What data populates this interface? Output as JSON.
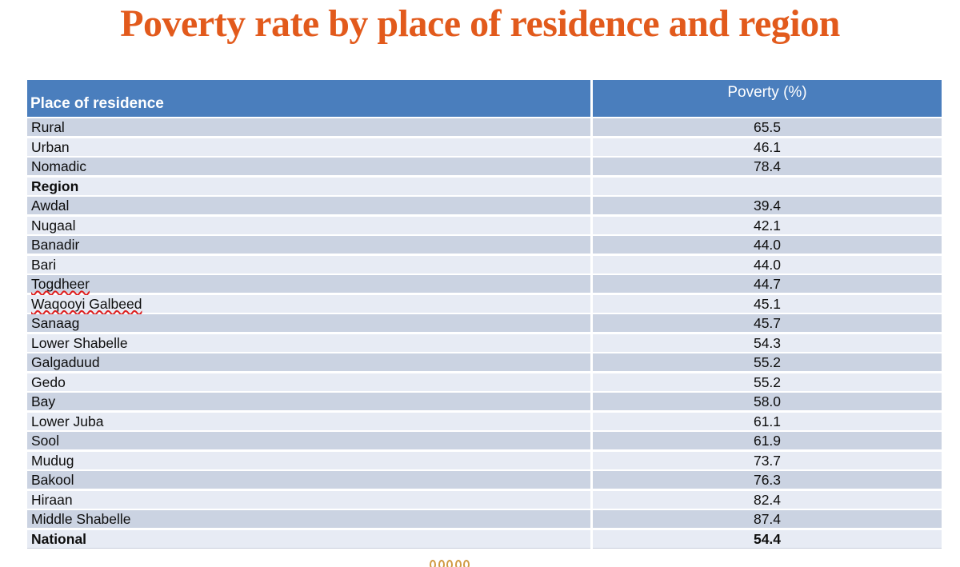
{
  "title": "Poverty rate by place of residence and region",
  "table": {
    "columns": [
      "Place of residence",
      "Poverty (%)"
    ],
    "rows": [
      {
        "label": "Rural",
        "value": "65.5",
        "bold": false,
        "misspelled": false
      },
      {
        "label": "Urban",
        "value": "46.1",
        "bold": false,
        "misspelled": false
      },
      {
        "label": "Nomadic",
        "value": "78.4",
        "bold": false,
        "misspelled": false
      },
      {
        "label": "Region",
        "value": "",
        "bold": true,
        "misspelled": false
      },
      {
        "label": "Awdal",
        "value": "39.4",
        "bold": false,
        "misspelled": false
      },
      {
        "label": "Nugaal",
        "value": "42.1",
        "bold": false,
        "misspelled": false
      },
      {
        "label": "Banadir",
        "value": "44.0",
        "bold": false,
        "misspelled": false
      },
      {
        "label": "Bari",
        "value": "44.0",
        "bold": false,
        "misspelled": false
      },
      {
        "label": "Togdheer",
        "value": "44.7",
        "bold": false,
        "misspelled": true
      },
      {
        "label": "Waqooyi Galbeed",
        "value": "45.1",
        "bold": false,
        "misspelled": true
      },
      {
        "label": "Sanaag",
        "value": "45.7",
        "bold": false,
        "misspelled": false
      },
      {
        "label": "Lower Shabelle",
        "value": "54.3",
        "bold": false,
        "misspelled": false
      },
      {
        "label": "Galgaduud",
        "value": "55.2",
        "bold": false,
        "misspelled": false
      },
      {
        "label": "Gedo",
        "value": "55.2",
        "bold": false,
        "misspelled": false
      },
      {
        "label": "Bay",
        "value": "58.0",
        "bold": false,
        "misspelled": false
      },
      {
        "label": "Lower Juba",
        "value": "61.1",
        "bold": false,
        "misspelled": false
      },
      {
        "label": "Sool",
        "value": "61.9",
        "bold": false,
        "misspelled": false
      },
      {
        "label": "Mudug",
        "value": "73.7",
        "bold": false,
        "misspelled": false
      },
      {
        "label": "Bakool",
        "value": "76.3",
        "bold": false,
        "misspelled": false
      },
      {
        "label": "Hiraan",
        "value": "82.4",
        "bold": false,
        "misspelled": false
      },
      {
        "label": "Middle Shabelle",
        "value": "87.4",
        "bold": false,
        "misspelled": false
      },
      {
        "label": "National",
        "value": "54.4",
        "bold": true,
        "misspelled": false
      }
    ]
  },
  "colors": {
    "title_orange": "#E25A1C",
    "header_blue": "#4A7EBD",
    "band_dark": "#CBD3E2",
    "band_light": "#E7EBF4",
    "spellcheck_red": "#DD1F1F",
    "bottom_marks_orange": "#D09A43",
    "bottom_border": "#C7CDDB"
  },
  "chart_data": {
    "type": "table",
    "title": "Poverty rate by place of residence and region",
    "columns": [
      "Place of residence",
      "Poverty (%)"
    ],
    "rows": [
      [
        "Rural",
        65.5
      ],
      [
        "Urban",
        46.1
      ],
      [
        "Nomadic",
        78.4
      ],
      [
        "Region",
        null
      ],
      [
        "Awdal",
        39.4
      ],
      [
        "Nugaal",
        42.1
      ],
      [
        "Banadir",
        44.0
      ],
      [
        "Bari",
        44.0
      ],
      [
        "Togdheer",
        44.7
      ],
      [
        "Waqooyi Galbeed",
        45.1
      ],
      [
        "Sanaag",
        45.7
      ],
      [
        "Lower Shabelle",
        54.3
      ],
      [
        "Galgaduud",
        55.2
      ],
      [
        "Gedo",
        55.2
      ],
      [
        "Bay",
        58.0
      ],
      [
        "Lower Juba",
        61.1
      ],
      [
        "Sool",
        61.9
      ],
      [
        "Mudug",
        73.7
      ],
      [
        "Bakool",
        76.3
      ],
      [
        "Hiraan",
        82.4
      ],
      [
        "Middle Shabelle",
        87.4
      ],
      [
        "National",
        54.4
      ]
    ]
  }
}
